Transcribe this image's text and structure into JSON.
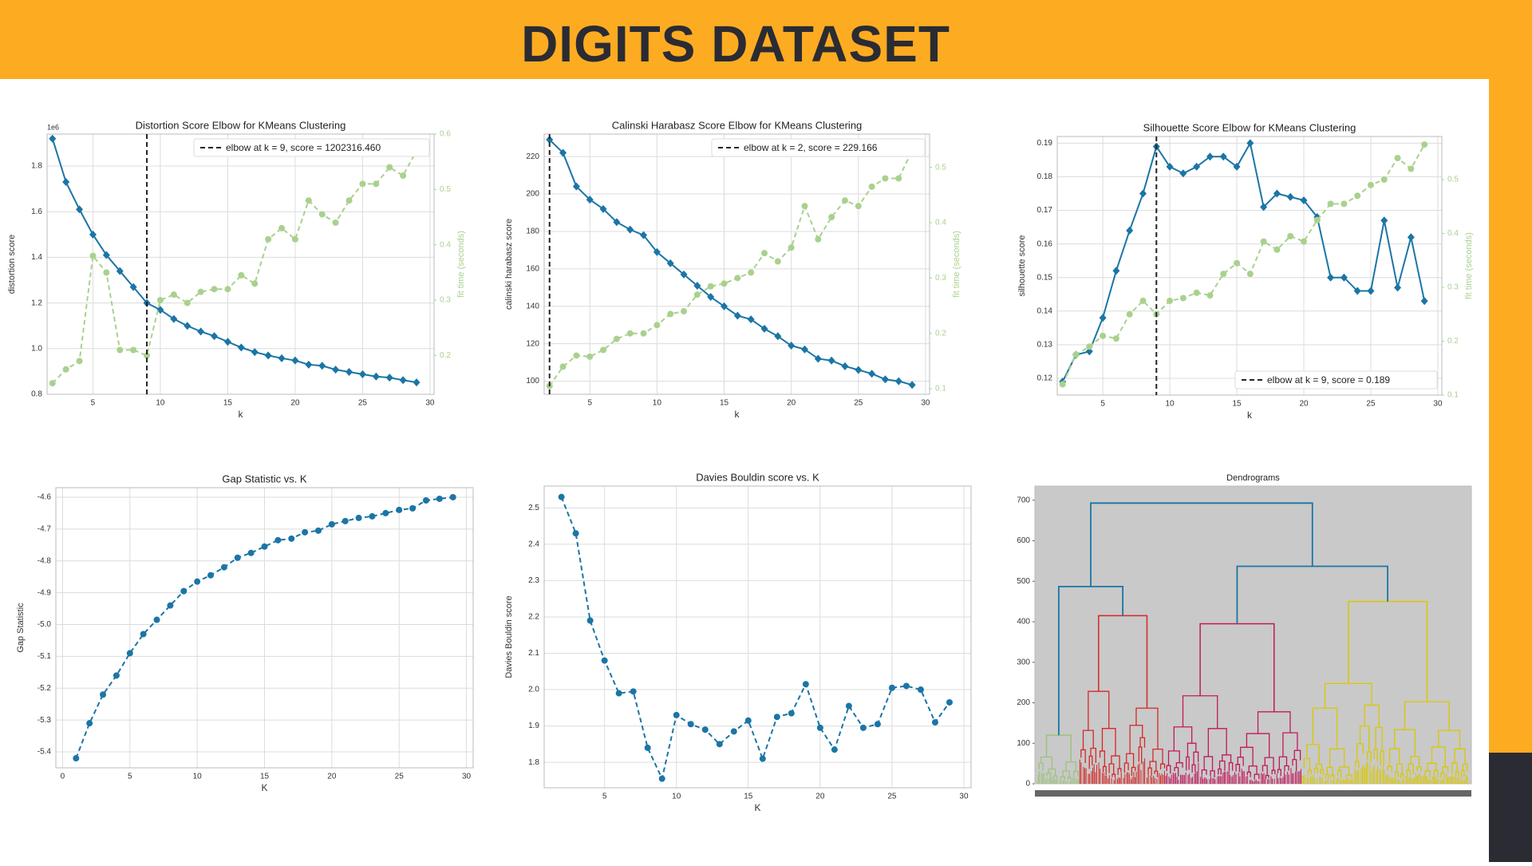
{
  "header": {
    "title": "DIGITS DATASET"
  },
  "chart_data": [
    {
      "type": "elbow",
      "title": "Distortion Score Elbow for KMeans Clustering",
      "xlabel": "k",
      "ylabel": "distortion score",
      "y2label": "fit time (seconds)",
      "offset_label": "1e6",
      "x": [
        2,
        3,
        4,
        5,
        6,
        7,
        8,
        9,
        10,
        11,
        12,
        13,
        14,
        15,
        16,
        17,
        18,
        19,
        20,
        21,
        22,
        23,
        24,
        25,
        26,
        27,
        28,
        29
      ],
      "series": [
        {
          "color": "#1b75a6",
          "marker": "diamond",
          "values": [
            1.92,
            1.73,
            1.61,
            1.5,
            1.41,
            1.34,
            1.27,
            1.2,
            1.17,
            1.13,
            1.1,
            1.075,
            1.055,
            1.03,
            1.005,
            0.985,
            0.97,
            0.958,
            0.948,
            0.93,
            0.925,
            0.908,
            0.898,
            0.888,
            0.878,
            0.873,
            0.862,
            0.852
          ]
        },
        {
          "color": "#a9d18e",
          "marker": "circle",
          "linestyle": "dashed",
          "axis": "y2",
          "values": [
            0.15,
            0.175,
            0.19,
            0.38,
            0.35,
            0.21,
            0.21,
            0.2,
            0.3,
            0.31,
            0.295,
            0.315,
            0.32,
            0.32,
            0.345,
            0.33,
            0.41,
            0.43,
            0.41,
            0.48,
            0.455,
            0.44,
            0.48,
            0.51,
            0.51,
            0.54,
            0.525,
            0.57
          ]
        }
      ],
      "elbow_k": 9,
      "legend": "elbow at k = 9, score = 1202316.460",
      "legend_loc": "upper right",
      "xlim": [
        1.6,
        30.3
      ],
      "xticks": [
        5,
        10,
        15,
        20,
        25,
        30
      ],
      "ylim": [
        0.8,
        1.94
      ],
      "yticks": [
        {
          "value": 0.8,
          "label": "0.8"
        },
        {
          "value": 1,
          "label": "1.0"
        },
        {
          "value": 1.2,
          "label": "1.2"
        },
        {
          "value": 1.4,
          "label": "1.4"
        },
        {
          "value": 1.6,
          "label": "1.6"
        },
        {
          "value": 1.8,
          "label": "1.8"
        }
      ],
      "y2lim": [
        0.13,
        0.6
      ],
      "y2ticks": [
        0.2,
        0.3,
        0.4,
        0.5,
        0.6
      ],
      "grid": true
    },
    {
      "type": "elbow",
      "title": "Calinski Harabasz Score Elbow for KMeans Clustering",
      "xlabel": "k",
      "ylabel": "calinski harabasz score",
      "y2label": "fit time (seconds)",
      "x": [
        2,
        3,
        4,
        5,
        6,
        7,
        8,
        9,
        10,
        11,
        12,
        13,
        14,
        15,
        16,
        17,
        18,
        19,
        20,
        21,
        22,
        23,
        24,
        25,
        26,
        27,
        28,
        29
      ],
      "series": [
        {
          "color": "#1b75a6",
          "marker": "diamond",
          "values": [
            229,
            222,
            204,
            197,
            192,
            185,
            181,
            178,
            169,
            163,
            157,
            151,
            145,
            140,
            135,
            133,
            128,
            124,
            119,
            117,
            112,
            111,
            108,
            106,
            104,
            101,
            100,
            98
          ]
        },
        {
          "color": "#a9d18e",
          "marker": "circle",
          "linestyle": "dashed",
          "axis": "y2",
          "values": [
            0.105,
            0.14,
            0.16,
            0.158,
            0.17,
            0.19,
            0.2,
            0.2,
            0.215,
            0.235,
            0.24,
            0.27,
            0.285,
            0.29,
            0.3,
            0.31,
            0.345,
            0.33,
            0.355,
            0.43,
            0.37,
            0.41,
            0.44,
            0.43,
            0.465,
            0.48,
            0.48,
            0.53
          ]
        }
      ],
      "elbow_k": 2,
      "legend": "elbow at k = 2, score = 229.166",
      "legend_loc": "upper right",
      "xlim": [
        1.6,
        30.3
      ],
      "xticks": [
        5,
        10,
        15,
        20,
        25,
        30
      ],
      "ylim": [
        93,
        232
      ],
      "yticks": [
        100,
        120,
        140,
        160,
        180,
        200,
        220
      ],
      "y2lim": [
        0.09,
        0.56
      ],
      "y2ticks": [
        0.1,
        0.2,
        0.3,
        0.4,
        0.5
      ],
      "grid": true
    },
    {
      "type": "elbow",
      "title": "Silhouette Score Elbow for KMeans Clustering",
      "xlabel": "k",
      "ylabel": "silhouette score",
      "y2label": "fit time (seconds)",
      "x": [
        2,
        3,
        4,
        5,
        6,
        7,
        8,
        9,
        10,
        11,
        12,
        13,
        14,
        15,
        16,
        17,
        18,
        19,
        20,
        21,
        22,
        23,
        24,
        25,
        26,
        27,
        28,
        29
      ],
      "series": [
        {
          "color": "#1b75a6",
          "marker": "diamond",
          "values": [
            0.119,
            0.127,
            0.128,
            0.138,
            0.152,
            0.164,
            0.175,
            0.189,
            0.183,
            0.181,
            0.183,
            0.186,
            0.186,
            0.183,
            0.19,
            0.171,
            0.175,
            0.174,
            0.173,
            0.168,
            0.15,
            0.15,
            0.146,
            0.146,
            0.167,
            0.147,
            0.162,
            0.143
          ]
        },
        {
          "color": "#a9d18e",
          "marker": "circle",
          "linestyle": "dashed",
          "axis": "y2",
          "values": [
            0.12,
            0.175,
            0.19,
            0.21,
            0.205,
            0.25,
            0.275,
            0.25,
            0.275,
            0.28,
            0.29,
            0.285,
            0.325,
            0.345,
            0.325,
            0.385,
            0.37,
            0.395,
            0.385,
            0.425,
            0.455,
            0.455,
            0.47,
            0.49,
            0.5,
            0.54,
            0.52,
            0.565
          ]
        }
      ],
      "elbow_k": 9,
      "legend": "elbow at k = 9, score = 0.189",
      "legend_loc": "lower right",
      "xlim": [
        1.6,
        30.3
      ],
      "xticks": [
        5,
        10,
        15,
        20,
        25,
        30
      ],
      "ylim": [
        0.115,
        0.192
      ],
      "yticks": [
        0.12,
        0.13,
        0.14,
        0.15,
        0.16,
        0.17,
        0.18,
        0.19
      ],
      "y2lim": [
        0.1,
        0.58
      ],
      "y2ticks": [
        0.1,
        0.2,
        0.3,
        0.4,
        0.5
      ],
      "grid": true
    },
    {
      "type": "line",
      "title": "Gap Statistic vs. K",
      "xlabel": "K",
      "ylabel": "Gap Statistic",
      "x": [
        1,
        2,
        3,
        4,
        5,
        6,
        7,
        8,
        9,
        10,
        11,
        12,
        13,
        14,
        15,
        16,
        17,
        18,
        19,
        20,
        21,
        22,
        23,
        24,
        25,
        26,
        27,
        28,
        29
      ],
      "series": [
        {
          "color": "#1b75a6",
          "marker": "circle",
          "linestyle": "dashed",
          "values": [
            -5.42,
            -5.31,
            -5.22,
            -5.16,
            -5.09,
            -5.03,
            -4.985,
            -4.94,
            -4.895,
            -4.865,
            -4.845,
            -4.82,
            -4.79,
            -4.775,
            -4.755,
            -4.735,
            -4.73,
            -4.71,
            -4.705,
            -4.685,
            -4.675,
            -4.665,
            -4.66,
            -4.65,
            -4.64,
            -4.635,
            -4.61,
            -4.605,
            -4.6
          ]
        }
      ],
      "xlim": [
        -0.5,
        30.5
      ],
      "xticks": [
        0,
        5,
        10,
        15,
        20,
        25,
        30
      ],
      "ylim": [
        -5.45,
        -4.57
      ],
      "yticks": [
        -5.4,
        -5.3,
        -5.2,
        -5.1,
        {
          "value": -5,
          "label": "-5.0"
        },
        -4.9,
        -4.8,
        -4.7,
        -4.6
      ],
      "grid": true
    },
    {
      "type": "line",
      "title": "Davies Bouldin score vs. K",
      "xlabel": "K",
      "ylabel": "Davies Bouldin score",
      "x": [
        2,
        3,
        4,
        5,
        6,
        7,
        8,
        9,
        10,
        11,
        12,
        13,
        14,
        15,
        16,
        17,
        18,
        19,
        20,
        21,
        22,
        23,
        24,
        25,
        26,
        27,
        28,
        29
      ],
      "series": [
        {
          "color": "#1b75a6",
          "marker": "circle",
          "linestyle": "dashed",
          "values": [
            2.53,
            2.43,
            2.19,
            2.08,
            1.99,
            1.995,
            1.84,
            1.755,
            1.93,
            1.905,
            1.89,
            1.85,
            1.885,
            1.915,
            1.81,
            1.925,
            1.935,
            2.015,
            1.895,
            1.835,
            1.955,
            1.895,
            1.905,
            2.005,
            2.01,
            2.0,
            1.91,
            1.965
          ]
        }
      ],
      "xlim": [
        0.8,
        30.5
      ],
      "xticks": [
        5,
        10,
        15,
        20,
        25,
        30
      ],
      "ylim": [
        1.73,
        2.56
      ],
      "yticks": [
        1.8,
        1.9,
        {
          "value": 2,
          "label": "2.0"
        },
        2.1,
        2.2,
        2.3,
        2.4,
        2.5
      ],
      "grid": true
    },
    {
      "type": "dendrogram",
      "title": "Dendrograms",
      "ylim": [
        0,
        735
      ],
      "yticks": [
        0,
        100,
        200,
        300,
        400,
        500,
        600,
        700
      ],
      "link_color": "#1b75a6",
      "links": [
        487,
        537,
        693
      ],
      "clusters": [
        {
          "color": "#9bc47a",
          "height": 120
        },
        {
          "color": "#d62728",
          "height": 415
        },
        {
          "color": "#c2185b",
          "height": 395
        },
        {
          "color": "#d9c800",
          "height": 450
        }
      ]
    }
  ]
}
